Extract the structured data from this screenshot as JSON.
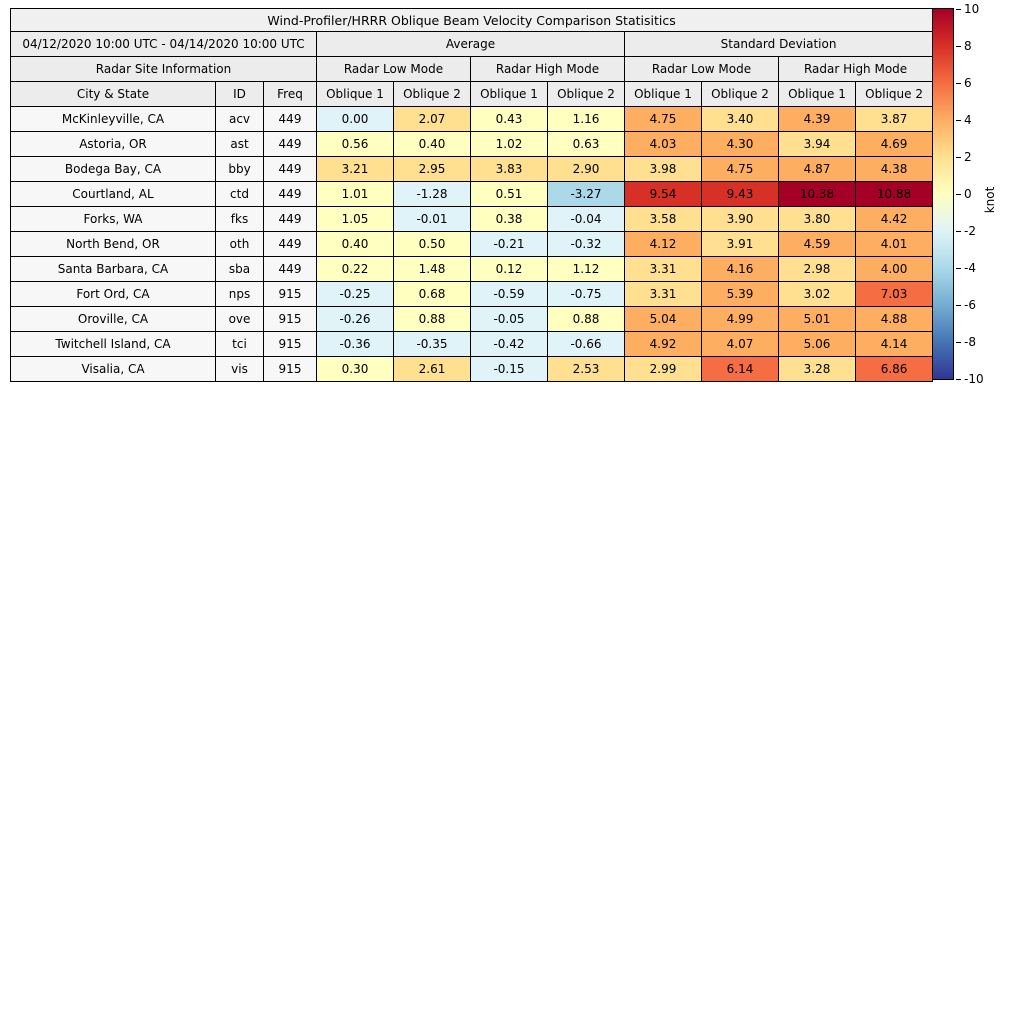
{
  "title": "Wind-Profiler/HRRR Oblique Beam Velocity Comparison Statisitics",
  "table": {
    "date_range": "04/12/2020 10:00 UTC - 04/14/2020 10:00 UTC",
    "site_info_label": "Radar Site Information",
    "avg_label": "Average",
    "std_label": "Standard Deviation",
    "low_mode_label": "Radar Low Mode",
    "high_mode_label": "Radar High Mode",
    "col_city": "City & State",
    "col_id": "ID",
    "col_freq": "Freq",
    "oblique1_label": "Oblique 1",
    "oblique2_label": "Oblique 2"
  },
  "colorbar": {
    "label": "knot",
    "vmin": -10,
    "vmax": 10,
    "ticks": [
      "10",
      "8",
      "6",
      "4",
      "2",
      "0",
      "-2",
      "-4",
      "-6",
      "-8",
      "-10"
    ]
  },
  "chart_data": {
    "type": "table",
    "style": "heatmap",
    "title": "Wind-Profiler/HRRR Oblique Beam Velocity Comparison Statisitics",
    "unit": "knot",
    "value_range": [
      -10,
      10
    ],
    "colormap": "RdYlBu_r binned every 2 knots",
    "colormap_palette": [
      "#313695",
      "#4575b4",
      "#74add1",
      "#abd9e9",
      "#e0f3f8",
      "#ffffbf",
      "#fee090",
      "#fdae61",
      "#f46d43",
      "#d73027",
      "#a50026"
    ],
    "column_groups": [
      "Average / Radar Low Mode",
      "Average / Radar High Mode",
      "Standard Deviation / Radar Low Mode",
      "Standard Deviation / Radar High Mode"
    ],
    "value_columns": [
      "Avg Low Oblique 1",
      "Avg Low Oblique 2",
      "Avg High Oblique 1",
      "Avg High Oblique 2",
      "Std Low Oblique 1",
      "Std Low Oblique 2",
      "Std High Oblique 1",
      "Std High Oblique 2"
    ],
    "rows": [
      {
        "city": "McKinleyville, CA",
        "id": "acv",
        "freq": "449",
        "values": [
          "0.00",
          "2.07",
          "0.43",
          "1.16",
          "4.75",
          "3.40",
          "4.39",
          "3.87"
        ]
      },
      {
        "city": "Astoria, OR",
        "id": "ast",
        "freq": "449",
        "values": [
          "0.56",
          "0.40",
          "1.02",
          "0.63",
          "4.03",
          "4.30",
          "3.94",
          "4.69"
        ]
      },
      {
        "city": "Bodega Bay, CA",
        "id": "bby",
        "freq": "449",
        "values": [
          "3.21",
          "2.95",
          "3.83",
          "2.90",
          "3.98",
          "4.75",
          "4.87",
          "4.38"
        ]
      },
      {
        "city": "Courtland, AL",
        "id": "ctd",
        "freq": "449",
        "values": [
          "1.01",
          "-1.28",
          "0.51",
          "-3.27",
          "9.54",
          "9.43",
          "10.38",
          "10.88"
        ]
      },
      {
        "city": "Forks, WA",
        "id": "fks",
        "freq": "449",
        "values": [
          "1.05",
          "-0.01",
          "0.38",
          "-0.04",
          "3.58",
          "3.90",
          "3.80",
          "4.42"
        ]
      },
      {
        "city": "North Bend, OR",
        "id": "oth",
        "freq": "449",
        "values": [
          "0.40",
          "0.50",
          "-0.21",
          "-0.32",
          "4.12",
          "3.91",
          "4.59",
          "4.01"
        ]
      },
      {
        "city": "Santa Barbara, CA",
        "id": "sba",
        "freq": "449",
        "values": [
          "0.22",
          "1.48",
          "0.12",
          "1.12",
          "3.31",
          "4.16",
          "2.98",
          "4.00"
        ]
      },
      {
        "city": "Fort Ord, CA",
        "id": "nps",
        "freq": "915",
        "values": [
          "-0.25",
          "0.68",
          "-0.59",
          "-0.75",
          "3.31",
          "5.39",
          "3.02",
          "7.03"
        ]
      },
      {
        "city": "Oroville, CA",
        "id": "ove",
        "freq": "915",
        "values": [
          "-0.26",
          "0.88",
          "-0.05",
          "0.88",
          "5.04",
          "4.99",
          "5.01",
          "4.88"
        ]
      },
      {
        "city": "Twitchell Island, CA",
        "id": "tci",
        "freq": "915",
        "values": [
          "-0.36",
          "-0.35",
          "-0.42",
          "-0.66",
          "4.92",
          "4.07",
          "5.06",
          "4.14"
        ]
      },
      {
        "city": "Visalia, CA",
        "id": "vis",
        "freq": "915",
        "values": [
          "0.30",
          "2.61",
          "-0.15",
          "2.53",
          "2.99",
          "6.14",
          "3.28",
          "6.86"
        ]
      }
    ]
  }
}
